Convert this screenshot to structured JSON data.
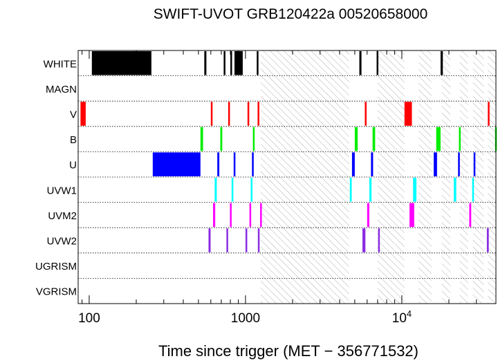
{
  "chart_data": {
    "type": "timeline",
    "title": "SWIFT-UVOT GRB120422a 00520658000",
    "xlabel": "Time since trigger (MET − 356771532)",
    "xscale": "log",
    "xlim": [
      85,
      40000
    ],
    "x_ticks": [
      {
        "value": 100,
        "label": "100"
      },
      {
        "value": 1000,
        "label": "1000"
      },
      {
        "value": 10000,
        "label": "10",
        "exp": "4"
      }
    ],
    "filters": [
      "WHITE",
      "MAGN",
      "V",
      "B",
      "U",
      "UVW1",
      "UVM2",
      "UVW2",
      "UGRISM",
      "VGRISM"
    ],
    "colors": {
      "WHITE": "#000000",
      "MAGN": "#000000",
      "V": "#ff0000",
      "B": "#00ee00",
      "U": "#0000ff",
      "UVW1": "#00ffff",
      "UVM2": "#ff00ff",
      "UVW2": "#8a2be2",
      "UGRISM": "#000000",
      "VGRISM": "#000000"
    },
    "hatched_intervals": [
      [
        1250,
        4600
      ],
      [
        7000,
        10400
      ],
      [
        12800,
        15500
      ],
      [
        18000,
        20500
      ],
      [
        23500,
        26500
      ],
      [
        28500,
        33500
      ],
      [
        35500,
        40000
      ]
    ],
    "exposures": {
      "WHITE": [
        [
          104,
          250
        ],
        [
          545,
          562
        ],
        [
          725,
          742
        ],
        [
          800,
          820
        ],
        [
          850,
          960
        ],
        [
          1180,
          1190
        ],
        [
          5350,
          5520
        ],
        [
          6900,
          7050
        ],
        [
          17700,
          18300
        ]
      ],
      "MAGN": [],
      "V": [
        [
          88,
          95
        ],
        [
          600,
          612
        ],
        [
          775,
          790
        ],
        [
          1030,
          1040
        ],
        [
          1195,
          1205
        ],
        [
          5800,
          5950
        ],
        [
          10400,
          11600
        ],
        [
          35500,
          36000
        ]
      ],
      "B": [
        [
          515,
          535
        ],
        [
          690,
          710
        ],
        [
          1115,
          1135
        ],
        [
          5000,
          5220
        ],
        [
          6500,
          6750
        ],
        [
          16600,
          17700
        ],
        [
          23200,
          23800
        ],
        [
          39500,
          40000
        ]
      ],
      "U": [
        [
          255,
          515
        ],
        [
          660,
          680
        ],
        [
          840,
          855
        ],
        [
          1100,
          1120
        ],
        [
          4800,
          5000
        ],
        [
          6350,
          6550
        ],
        [
          16000,
          16800
        ],
        [
          22900,
          23500
        ],
        [
          28800,
          29400
        ]
      ],
      "UVW1": [
        [
          635,
          655
        ],
        [
          815,
          830
        ],
        [
          1080,
          1100
        ],
        [
          4650,
          4780
        ],
        [
          6200,
          6400
        ],
        [
          11800,
          12400
        ],
        [
          21500,
          22300
        ],
        [
          28200,
          28900
        ]
      ],
      "UVM2": [
        [
          620,
          640
        ],
        [
          795,
          810
        ],
        [
          1060,
          1075
        ],
        [
          1240,
          1255
        ],
        [
          6000,
          6200
        ],
        [
          11200,
          12000
        ],
        [
          27000,
          27800
        ]
      ],
      "UVW2": [
        [
          580,
          598
        ],
        [
          755,
          770
        ],
        [
          1000,
          1018
        ],
        [
          1200,
          1215
        ],
        [
          5600,
          5850
        ],
        [
          7050,
          7200
        ],
        [
          35000,
          36000
        ]
      ],
      "UGRISM": [],
      "VGRISM": []
    }
  }
}
